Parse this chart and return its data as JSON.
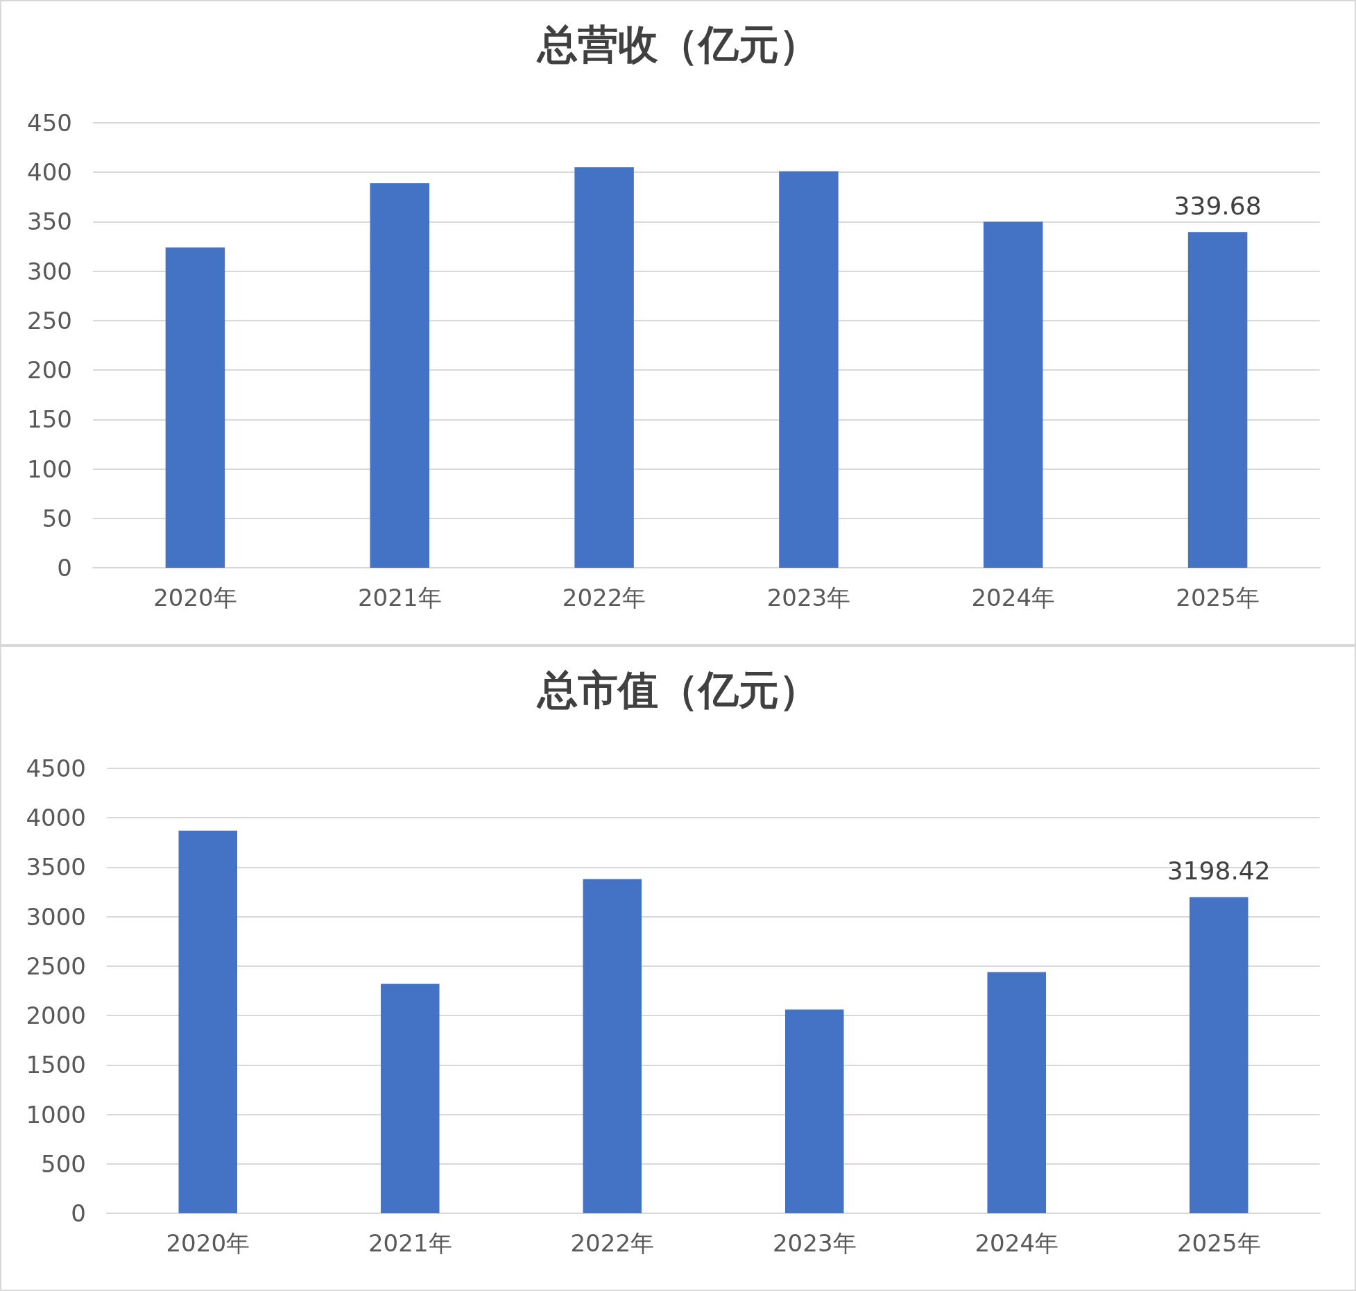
{
  "chart_data": [
    {
      "type": "bar",
      "title": "总营收（亿元）",
      "categories": [
        "2020年",
        "2021年",
        "2022年",
        "2023年",
        "2024年",
        "2025年"
      ],
      "values": [
        324,
        389,
        405,
        401,
        350,
        339.68
      ],
      "value_labels": [
        null,
        null,
        null,
        null,
        null,
        "339.68"
      ],
      "color": "#4472c4",
      "ylim": [
        0,
        450
      ],
      "yticks": [
        0,
        50,
        100,
        150,
        200,
        250,
        300,
        350,
        400,
        450
      ],
      "grid": "y"
    },
    {
      "type": "bar",
      "title": "总市值（亿元）",
      "categories": [
        "2020年",
        "2021年",
        "2022年",
        "2023年",
        "2024年",
        "2025年"
      ],
      "values": [
        3870,
        2320,
        3380,
        2060,
        2440,
        3198.42
      ],
      "value_labels": [
        null,
        null,
        null,
        null,
        null,
        "3198.42"
      ],
      "color": "#4472c4",
      "ylim": [
        0,
        4500
      ],
      "yticks": [
        0,
        500,
        1000,
        1500,
        2000,
        2500,
        3000,
        3500,
        4000,
        4500
      ],
      "grid": "y"
    }
  ]
}
